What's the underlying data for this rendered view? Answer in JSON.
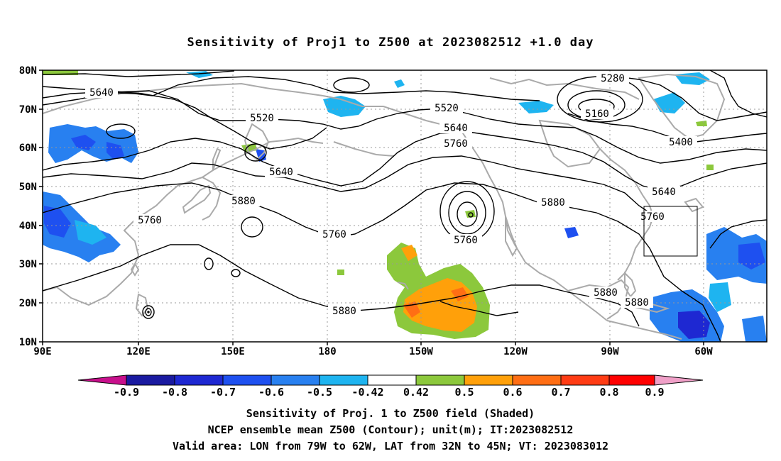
{
  "title": "Sensitivity of Proj1 to Z500 at 2023082512 +1.0 day",
  "map": {
    "lon_range": [
      90,
      310
    ],
    "lat_range": [
      10,
      80
    ],
    "lat_labels": [
      "80N",
      "70N",
      "60N",
      "50N",
      "40N",
      "30N",
      "20N",
      "10N"
    ],
    "lon_labels": [
      "90E",
      "120E",
      "150E",
      "180",
      "150W",
      "120W",
      "90W",
      "60W"
    ],
    "gridlines": "dotted",
    "valid_box": {
      "lon": [
        -79,
        -62
      ],
      "lat": [
        32,
        45
      ]
    }
  },
  "contour_labels": [
    "5640",
    "5520",
    "5520",
    "5640",
    "5760",
    "5640",
    "5760",
    "5880",
    "5760",
    "5760",
    "5880",
    "5280",
    "5160",
    "5400",
    "5640",
    "5760",
    "5880",
    "5880"
  ],
  "colorbar": {
    "labels": [
      "-0.9",
      "-0.8",
      "-0.7",
      "-0.6",
      "-0.5",
      "-0.42",
      "0.42",
      "0.5",
      "0.6",
      "0.7",
      "0.8",
      "0.9"
    ],
    "colors": [
      "#c8108c",
      "#1a1aa0",
      "#1e28d2",
      "#1e50f0",
      "#2880f0",
      "#1eb4f0",
      "#ffffff",
      "#8cc83c",
      "#ffa00a",
      "#ff6e14",
      "#ff3c14",
      "#ff0000",
      "#f0a0c8"
    ]
  },
  "captions": {
    "line1": "Sensitivity of Proj. 1 to Z500 field (Shaded)",
    "line2": "NCEP ensemble mean Z500 (Contour); unit(m); IT:2023082512",
    "line3": "Valid area: LON from 79W to 62W, LAT from 32N to 45N; VT: 2023083012"
  }
}
